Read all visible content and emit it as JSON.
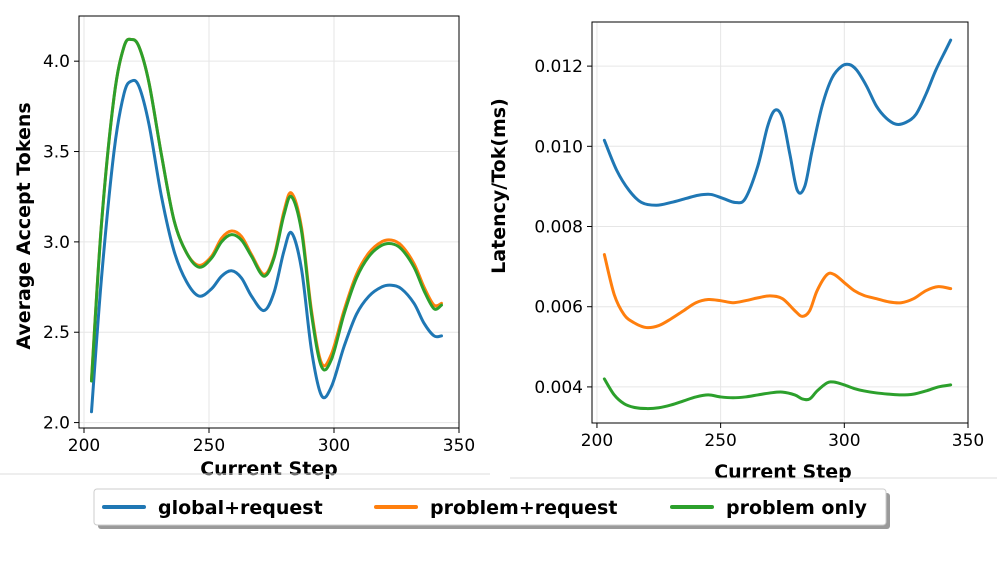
{
  "chart_data": [
    {
      "type": "line",
      "xlabel": "Current Step",
      "ylabel": "Average Accept Tokens",
      "xlim": [
        198,
        350
      ],
      "ylim": [
        1.97,
        4.25
      ],
      "xticks": [
        200,
        250,
        300,
        350
      ],
      "yticks": [
        2.0,
        2.5,
        3.0,
        3.5,
        4.0
      ],
      "ytick_labels": [
        "2.0",
        "2.5",
        "3.0",
        "3.5",
        "4.0"
      ],
      "grid": true,
      "series": [
        {
          "name": "global+request",
          "color": "#1f77b4",
          "x": [
            203,
            207,
            212,
            216,
            219,
            222,
            226,
            231,
            236,
            241,
            246,
            251,
            255,
            259,
            263,
            267,
            272,
            276,
            280,
            283,
            287,
            291,
            295,
            299,
            304,
            309,
            314,
            319,
            323,
            327,
            332,
            336,
            340,
            343
          ],
          "y": [
            2.06,
            2.8,
            3.5,
            3.82,
            3.89,
            3.86,
            3.65,
            3.25,
            2.95,
            2.78,
            2.7,
            2.74,
            2.81,
            2.84,
            2.8,
            2.7,
            2.62,
            2.72,
            2.95,
            3.05,
            2.85,
            2.4,
            2.15,
            2.2,
            2.42,
            2.6,
            2.7,
            2.75,
            2.76,
            2.74,
            2.66,
            2.55,
            2.48,
            2.48
          ]
        },
        {
          "name": "problem+request",
          "color": "#ff7f0e",
          "x": [
            203,
            207,
            212,
            216,
            219,
            222,
            226,
            231,
            236,
            241,
            246,
            251,
            255,
            259,
            263,
            267,
            272,
            276,
            280,
            283,
            287,
            291,
            295,
            299,
            304,
            309,
            314,
            319,
            323,
            327,
            332,
            336,
            340,
            343
          ],
          "y": [
            2.24,
            3.1,
            3.8,
            4.08,
            4.12,
            4.08,
            3.88,
            3.48,
            3.12,
            2.94,
            2.87,
            2.92,
            3.02,
            3.06,
            3.03,
            2.93,
            2.82,
            2.92,
            3.17,
            3.27,
            3.08,
            2.62,
            2.33,
            2.38,
            2.62,
            2.82,
            2.94,
            3.0,
            3.01,
            2.98,
            2.88,
            2.75,
            2.65,
            2.66
          ]
        },
        {
          "name": "problem only",
          "color": "#2ca02c",
          "x": [
            203,
            207,
            212,
            216,
            219,
            222,
            226,
            231,
            236,
            241,
            246,
            251,
            255,
            259,
            263,
            267,
            272,
            276,
            280,
            283,
            287,
            291,
            295,
            299,
            304,
            309,
            314,
            319,
            323,
            327,
            332,
            336,
            340,
            343
          ],
          "y": [
            2.23,
            3.1,
            3.8,
            4.08,
            4.12,
            4.08,
            3.88,
            3.48,
            3.12,
            2.94,
            2.86,
            2.91,
            3.0,
            3.04,
            3.01,
            2.92,
            2.81,
            2.91,
            3.15,
            3.25,
            3.06,
            2.6,
            2.31,
            2.35,
            2.6,
            2.8,
            2.92,
            2.98,
            2.99,
            2.96,
            2.86,
            2.73,
            2.63,
            2.65
          ]
        }
      ]
    },
    {
      "type": "line",
      "xlabel": "Current Step",
      "ylabel": "Latency/Tok(ms)",
      "xlim": [
        198,
        350
      ],
      "ylim": [
        0.0031,
        0.0131
      ],
      "xticks": [
        200,
        250,
        300,
        350
      ],
      "yticks": [
        0.004,
        0.006,
        0.008,
        0.01,
        0.012
      ],
      "ytick_labels": [
        "0.004",
        "0.006",
        "0.008",
        "0.010",
        "0.012"
      ],
      "grid": true,
      "series": [
        {
          "name": "global+request",
          "color": "#1f77b4",
          "x": [
            203,
            208,
            213,
            218,
            224,
            230,
            236,
            241,
            246,
            251,
            256,
            260,
            265,
            269,
            272,
            275,
            278,
            281,
            284,
            287,
            291,
            295,
            299,
            302,
            305,
            309,
            313,
            317,
            321,
            325,
            329,
            333,
            337,
            341,
            343
          ],
          "y": [
            0.01015,
            0.0094,
            0.0089,
            0.0086,
            0.00853,
            0.0086,
            0.0087,
            0.00878,
            0.0088,
            0.0087,
            0.0086,
            0.0087,
            0.0095,
            0.0105,
            0.0109,
            0.0107,
            0.0098,
            0.0089,
            0.009,
            0.0099,
            0.011,
            0.0117,
            0.012,
            0.01204,
            0.0119,
            0.0115,
            0.011,
            0.0107,
            0.01055,
            0.0106,
            0.0108,
            0.0113,
            0.0119,
            0.0124,
            0.01265
          ]
        },
        {
          "name": "problem+request",
          "color": "#ff7f0e",
          "x": [
            203,
            207,
            211,
            215,
            220,
            225,
            230,
            235,
            240,
            245,
            250,
            255,
            260,
            265,
            270,
            275,
            280,
            283,
            286,
            289,
            293,
            296,
            300,
            304,
            308,
            313,
            318,
            323,
            328,
            333,
            338,
            343
          ],
          "y": [
            0.0073,
            0.0063,
            0.0058,
            0.0056,
            0.00548,
            0.00553,
            0.0057,
            0.0059,
            0.0061,
            0.00618,
            0.00615,
            0.0061,
            0.00615,
            0.00622,
            0.00627,
            0.0062,
            0.0059,
            0.00576,
            0.0059,
            0.0064,
            0.0068,
            0.0068,
            0.0066,
            0.0064,
            0.00628,
            0.0062,
            0.00612,
            0.0061,
            0.0062,
            0.0064,
            0.0065,
            0.00645
          ]
        },
        {
          "name": "problem only",
          "color": "#2ca02c",
          "x": [
            203,
            207,
            211,
            215,
            220,
            225,
            230,
            235,
            240,
            245,
            250,
            255,
            260,
            265,
            270,
            275,
            280,
            283,
            286,
            289,
            293,
            296,
            300,
            304,
            308,
            313,
            318,
            323,
            328,
            333,
            338,
            343
          ],
          "y": [
            0.0042,
            0.0038,
            0.00358,
            0.00349,
            0.00346,
            0.00348,
            0.00355,
            0.00365,
            0.00375,
            0.0038,
            0.00375,
            0.00373,
            0.00375,
            0.0038,
            0.00385,
            0.00387,
            0.0038,
            0.0037,
            0.0037,
            0.0039,
            0.0041,
            0.00412,
            0.00405,
            0.00396,
            0.0039,
            0.00385,
            0.00382,
            0.0038,
            0.00382,
            0.0039,
            0.004,
            0.00405
          ]
        }
      ]
    }
  ],
  "legend": {
    "position": "bottom-center",
    "entries": [
      {
        "label": "global+request",
        "color": "#1f77b4"
      },
      {
        "label": "problem+request",
        "color": "#ff7f0e"
      },
      {
        "label": "problem only",
        "color": "#2ca02c"
      }
    ]
  }
}
